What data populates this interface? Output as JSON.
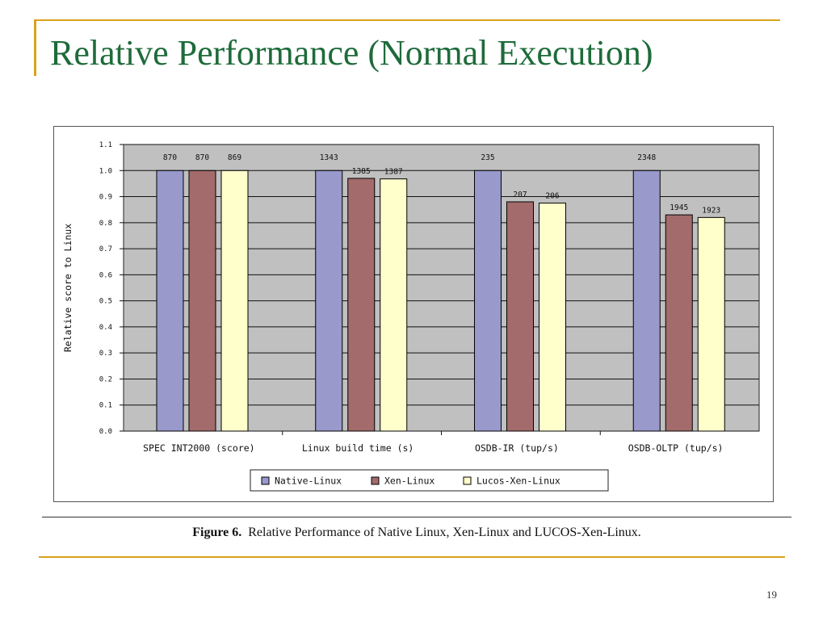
{
  "slide": {
    "title": "Relative Performance (Normal Execution)",
    "page_number": "19",
    "accent_color": "#D9A21B",
    "title_color": "#1E6B3A"
  },
  "figure": {
    "caption_label": "Figure 6.",
    "caption_text": "Relative Performance of Native Linux, Xen-Linux and LUCOS-Xen-Linux."
  },
  "chart_data": {
    "type": "bar",
    "title": "",
    "xlabel": "",
    "ylabel": "Relative score to Linux",
    "ylim": [
      0,
      1.1
    ],
    "yticks": [
      "0.0",
      "0.1",
      "0.2",
      "0.3",
      "0.4",
      "0.5",
      "0.6",
      "0.7",
      "0.8",
      "0.9",
      "1.0",
      "1.1"
    ],
    "grid": true,
    "legend_position": "bottom",
    "categories": [
      "SPEC INT2000 (score)",
      "Linux build time (s)",
      "OSDB-IR (tup/s)",
      "OSDB-OLTP (tup/s)"
    ],
    "series": [
      {
        "name": "Native-Linux",
        "color": "#9999CC",
        "values": [
          1.0,
          1.0,
          1.0,
          1.0
        ],
        "labels": [
          "870",
          "1343",
          "235",
          "2348"
        ]
      },
      {
        "name": "Xen-Linux",
        "color": "#A36B6B",
        "values": [
          1.0,
          0.97,
          0.88,
          0.83
        ],
        "labels": [
          "870",
          "1385",
          "207",
          "1945"
        ]
      },
      {
        "name": "Lucos-Xen-Linux",
        "color": "#FFFFCC",
        "values": [
          1.0,
          0.968,
          0.875,
          0.82
        ],
        "labels": [
          "869",
          "1387",
          "206",
          "1923"
        ]
      }
    ],
    "plot_background": "#C0C0C0"
  }
}
